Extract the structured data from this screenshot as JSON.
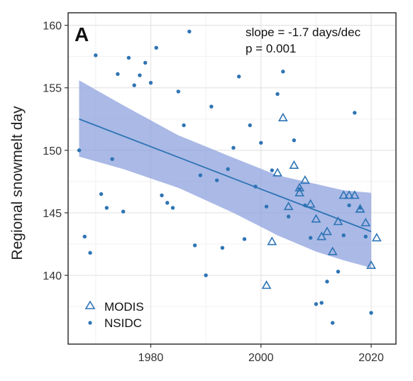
{
  "chart_data": {
    "type": "scatter",
    "panel_label": "A",
    "ylabel": "Regional snowmelt day",
    "xlabel": "",
    "xlim": [
      1965,
      2024.5
    ],
    "ylim": [
      134.5,
      161
    ],
    "x_ticks": [
      1980,
      2000,
      2020
    ],
    "y_ticks": [
      140,
      145,
      150,
      155,
      160
    ],
    "grid": true,
    "legend_position": "bottom-left",
    "annotations": [
      "slope = -1.7 days/dec",
      "p = 0.001"
    ],
    "trend": {
      "x": [
        1967,
        2020
      ],
      "y": [
        152.5,
        143.5
      ],
      "ci_x": [
        1967,
        1975,
        1985,
        1995,
        2003,
        2010,
        2015,
        2020
      ],
      "ci_upper": [
        155.6,
        153.6,
        151.2,
        149.4,
        148.0,
        147.3,
        146.8,
        146.6
      ],
      "ci_lower": [
        149.5,
        148.5,
        147.0,
        145.0,
        143.2,
        141.9,
        141.2,
        140.6
      ]
    },
    "series": [
      {
        "name": "MODIS",
        "marker": "triangle",
        "color": "#2E74B5",
        "x": [
          2001,
          2002,
          2003,
          2004,
          2005,
          2006,
          2007,
          2007,
          2008,
          2009,
          2010,
          2011,
          2012,
          2013,
          2014,
          2015,
          2016,
          2017,
          2018,
          2018,
          2019,
          2020,
          2021
        ],
        "y": [
          139.2,
          142.7,
          148.2,
          152.6,
          145.5,
          148.8,
          147.0,
          146.6,
          147.6,
          145.7,
          144.5,
          143.1,
          143.5,
          141.9,
          144.3,
          146.4,
          146.4,
          146.4,
          145.3,
          145.3,
          144.2,
          140.8,
          143.0
        ]
      },
      {
        "name": "NSIDC",
        "marker": "dot",
        "color": "#2E74B5",
        "x": [
          1967,
          1968,
          1969,
          1970,
          1971,
          1972,
          1973,
          1974,
          1975,
          1976,
          1977,
          1978,
          1979,
          1980,
          1981,
          1982,
          1983,
          1984,
          1985,
          1986,
          1987,
          1988,
          1989,
          1990,
          1991,
          1992,
          1993,
          1994,
          1995,
          1996,
          1997,
          1998,
          1999,
          2000,
          2001,
          2002,
          2003,
          2004,
          2005,
          2006,
          2007,
          2008,
          2009,
          2010,
          2011,
          2012,
          2013,
          2014,
          2015,
          2016,
          2017,
          2018,
          2019,
          2020
        ],
        "y": [
          150.0,
          143.1,
          141.8,
          157.6,
          146.5,
          145.4,
          149.3,
          156.1,
          145.1,
          157.4,
          155.2,
          156.0,
          157.0,
          155.4,
          158.2,
          146.4,
          145.8,
          145.4,
          154.7,
          152.0,
          159.5,
          142.4,
          148.0,
          140.0,
          153.5,
          147.6,
          142.2,
          148.5,
          150.2,
          155.9,
          142.9,
          152.0,
          147.1,
          150.6,
          145.5,
          148.4,
          154.5,
          156.3,
          144.7,
          150.8,
          146.9,
          145.6,
          143.0,
          137.7,
          137.8,
          139.5,
          136.2,
          140.3,
          143.2,
          145.6,
          153.0,
          145.4,
          143.1,
          137.0
        ]
      }
    ]
  }
}
